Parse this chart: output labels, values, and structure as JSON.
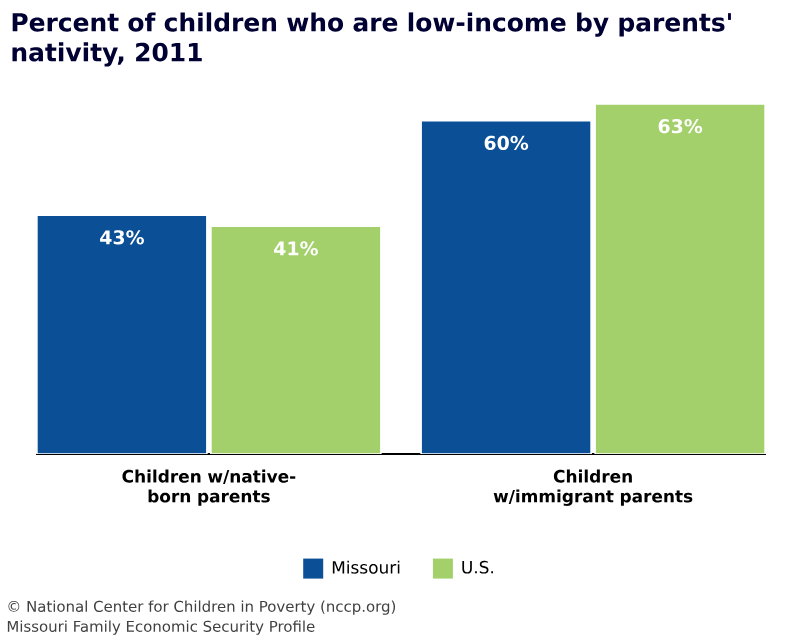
{
  "chart_data": {
    "type": "bar",
    "title": "Percent of children who are low-income by parents' nativity, 2011",
    "categories": [
      "Children w/native-born parents",
      "Children w/immigrant parents"
    ],
    "series": [
      {
        "name": "Missouri",
        "color": "#0b4f96",
        "values": [
          43,
          60
        ],
        "value_labels": [
          "43%",
          "60%"
        ]
      },
      {
        "name": "U.S.",
        "color": "#a3d06b",
        "values": [
          41,
          63
        ],
        "value_labels": [
          "41%",
          "63%"
        ]
      }
    ],
    "tick_labels": "x",
    "legend": "bottom",
    "annotations": [
      "© National Center for Children in Poverty (nccp.org)",
      "Missouri Family Economic Security Profile"
    ]
  }
}
